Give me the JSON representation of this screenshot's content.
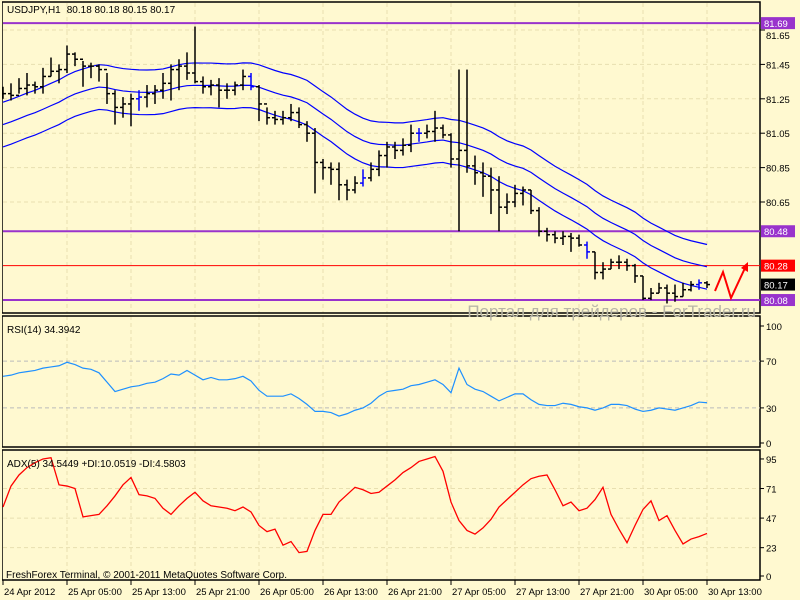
{
  "header": {
    "symbol": "USDJPY,H1",
    "ohlc": "80.18 80.18 80.15 80.17"
  },
  "watermark": "Портал для трейдеров - ForTrader.ru",
  "copyright": "FreshForex Terminal, © 2001-2011 MetaQuotes Software Corp.",
  "colors": {
    "background": "#fff9d0",
    "bars": "#000000",
    "bars_alt": "#0000ff",
    "envelope": "#0000ff",
    "level_purple": "#9933cc",
    "level_red": "#ff0000",
    "rsi": "#1e90ff",
    "adx": "#ff0000",
    "grid": "#e8dfb0"
  },
  "chart_data": [
    {
      "type": "ohlc-bar",
      "name_label": "USDJPY,H1",
      "price_ticks": [
        "81.65",
        "81.45",
        "81.25",
        "81.05",
        "80.85",
        "80.65"
      ],
      "time_labels": [
        "24 Apr 2012",
        "25 Apr 05:00",
        "25 Apr 13:00",
        "25 Apr 21:00",
        "26 Apr 05:00",
        "26 Apr 13:00",
        "26 Apr 21:00",
        "27 Apr 05:00",
        "27 Apr 13:00",
        "27 Apr 21:00",
        "30 Apr 05:00",
        "30 Apr 13:00"
      ],
      "ylim": [
        80.05,
        81.75
      ],
      "bars_hlc": [
        [
          81.32,
          81.25,
          81.28
        ],
        [
          81.34,
          81.24,
          81.27
        ],
        [
          81.37,
          81.28,
          81.31
        ],
        [
          81.4,
          81.27,
          81.33
        ],
        [
          81.35,
          81.28,
          81.32
        ],
        [
          81.43,
          81.28,
          81.38
        ],
        [
          81.49,
          81.38,
          81.41
        ],
        [
          81.45,
          81.34,
          81.42
        ],
        [
          81.56,
          81.4,
          81.51
        ],
        [
          81.52,
          81.44,
          81.48
        ],
        [
          81.47,
          81.32,
          81.44
        ],
        [
          81.46,
          81.37,
          81.44
        ],
        [
          81.45,
          81.35,
          81.42
        ],
        [
          81.4,
          81.22,
          81.28
        ],
        [
          81.3,
          81.1,
          81.2
        ],
        [
          81.26,
          81.14,
          81.22
        ],
        [
          81.28,
          81.09,
          81.25
        ],
        [
          81.3,
          81.18,
          81.26
        ],
        [
          81.33,
          81.2,
          81.28
        ],
        [
          81.33,
          81.22,
          81.3
        ],
        [
          81.4,
          81.25,
          81.34
        ],
        [
          81.45,
          81.24,
          81.42
        ],
        [
          81.48,
          81.3,
          81.44
        ],
        [
          81.52,
          81.36,
          81.4
        ],
        [
          81.67,
          81.34,
          81.35
        ],
        [
          81.38,
          81.28,
          81.32
        ],
        [
          81.36,
          81.27,
          81.33
        ],
        [
          81.37,
          81.2,
          81.3
        ],
        [
          81.34,
          81.25,
          81.3
        ],
        [
          81.35,
          81.27,
          81.33
        ],
        [
          81.42,
          81.3,
          81.38
        ],
        [
          81.4,
          81.3,
          81.32
        ],
        [
          81.33,
          81.12,
          81.22
        ],
        [
          81.2,
          81.1,
          81.14
        ],
        [
          81.18,
          81.1,
          81.13
        ],
        [
          81.18,
          81.1,
          81.14
        ],
        [
          81.22,
          81.12,
          81.17
        ],
        [
          81.2,
          81.08,
          81.1
        ],
        [
          81.12,
          81.0,
          81.05
        ],
        [
          81.08,
          80.7,
          80.88
        ],
        [
          80.9,
          80.78,
          80.85
        ],
        [
          80.88,
          80.75,
          80.84
        ],
        [
          80.88,
          80.66,
          80.75
        ],
        [
          80.78,
          80.66,
          80.72
        ],
        [
          80.8,
          80.7,
          80.76
        ],
        [
          80.84,
          80.74,
          80.79
        ],
        [
          80.88,
          80.77,
          80.84
        ],
        [
          80.95,
          80.8,
          80.92
        ],
        [
          81.0,
          80.85,
          80.97
        ],
        [
          81.0,
          80.9,
          80.95
        ],
        [
          81.02,
          80.92,
          80.98
        ],
        [
          81.1,
          80.94,
          81.05
        ],
        [
          81.08,
          81.0,
          81.05
        ],
        [
          81.1,
          81.02,
          81.06
        ],
        [
          81.18,
          81.0,
          81.08
        ],
        [
          81.1,
          81.02,
          81.04
        ],
        [
          81.05,
          80.85,
          80.9
        ],
        [
          81.42,
          80.48,
          80.95
        ],
        [
          81.42,
          80.82,
          80.86
        ],
        [
          80.92,
          80.75,
          80.82
        ],
        [
          80.88,
          80.68,
          80.8
        ],
        [
          80.85,
          80.58,
          80.72
        ],
        [
          80.8,
          80.48,
          80.62
        ],
        [
          80.7,
          80.58,
          80.65
        ],
        [
          80.75,
          80.62,
          80.7
        ],
        [
          80.74,
          80.63,
          80.72
        ],
        [
          80.72,
          80.58,
          80.6
        ],
        [
          80.62,
          80.45,
          80.48
        ],
        [
          80.5,
          80.42,
          80.46
        ],
        [
          80.48,
          80.41,
          80.44
        ],
        [
          80.48,
          80.4,
          80.45
        ],
        [
          80.47,
          80.36,
          80.44
        ],
        [
          80.46,
          80.39,
          80.4
        ],
        [
          80.42,
          80.32,
          80.36
        ],
        [
          80.36,
          80.2,
          80.24
        ],
        [
          80.3,
          80.2,
          80.26
        ],
        [
          80.32,
          80.26,
          80.3
        ],
        [
          80.34,
          80.26,
          80.3
        ],
        [
          80.32,
          80.25,
          80.28
        ],
        [
          80.29,
          80.18,
          80.22
        ],
        [
          80.22,
          80.08,
          80.09
        ],
        [
          80.15,
          80.08,
          80.12
        ],
        [
          80.18,
          80.12,
          80.15
        ],
        [
          80.17,
          80.06,
          80.12
        ],
        [
          80.17,
          80.07,
          80.1
        ],
        [
          80.18,
          80.1,
          80.14
        ],
        [
          80.19,
          80.13,
          80.17
        ],
        [
          80.2,
          80.14,
          80.18
        ],
        [
          80.19,
          80.15,
          80.17
        ]
      ],
      "envelope": {
        "ma_first": 81.1,
        "deviation": 0.13,
        "period": 20
      },
      "levels": [
        {
          "price": "81.69",
          "color": "#9933cc"
        },
        {
          "price": "80.48",
          "color": "#9933cc"
        },
        {
          "price": "80.28",
          "color": "#ff0000"
        },
        {
          "price": "80.08",
          "color": "#9933cc"
        }
      ],
      "current_price": "80.17",
      "annotation": "red zigzag arrow pointing up"
    },
    {
      "type": "line",
      "label": "RSI(14) 34.3942",
      "ylim": [
        0,
        100
      ],
      "ticks": [
        "100",
        "70",
        "30",
        "0"
      ],
      "levels": [
        70,
        30
      ],
      "values": [
        57,
        58,
        60,
        61,
        62,
        64,
        65,
        66,
        69,
        67,
        64,
        63,
        60,
        52,
        44,
        46,
        48,
        49,
        51,
        52,
        55,
        59,
        58,
        62,
        58,
        54,
        56,
        54,
        54,
        55,
        57,
        53,
        45,
        40,
        40,
        40,
        42,
        38,
        33,
        27,
        27,
        26,
        23,
        25,
        28,
        30,
        34,
        40,
        44,
        45,
        46,
        49,
        50,
        52,
        54,
        50,
        43,
        64,
        50,
        46,
        44,
        40,
        36,
        39,
        42,
        42,
        37,
        33,
        32,
        32,
        34,
        33,
        31,
        30,
        28,
        30,
        33,
        33,
        32,
        29,
        27,
        28,
        30,
        29,
        28,
        30,
        32,
        35,
        34.39
      ]
    },
    {
      "type": "line",
      "label": "ADX(5) 34.5449 +DI:10.0519 -DI:4.5803",
      "ylim": [
        0,
        95
      ],
      "ticks": [
        "95",
        "71",
        "47",
        "23",
        "0"
      ],
      "values": [
        56,
        73,
        82,
        88,
        92,
        95,
        96,
        74,
        73,
        71,
        48,
        49,
        50,
        57,
        65,
        74,
        80,
        66,
        65,
        63,
        55,
        50,
        57,
        63,
        68,
        61,
        57,
        56,
        55,
        53,
        56,
        52,
        41,
        36,
        38,
        25,
        28,
        19,
        20,
        37,
        50,
        50,
        60,
        66,
        72,
        70,
        67,
        68,
        73,
        78,
        84,
        88,
        93,
        95,
        97,
        85,
        60,
        45,
        37,
        34,
        39,
        46,
        56,
        62,
        68,
        74,
        79,
        81,
        82,
        70,
        57,
        60,
        53,
        55,
        62,
        72,
        50,
        38,
        27,
        41,
        54,
        61,
        45,
        49,
        37,
        26,
        30,
        32,
        34.54
      ]
    }
  ]
}
